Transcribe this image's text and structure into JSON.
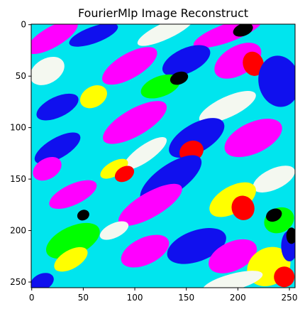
{
  "chart_data": {
    "type": "heatmap",
    "title": "FourierMlp Image Reconstruct",
    "xlabel": "",
    "ylabel": "",
    "xlim": [
      0,
      255
    ],
    "ylim": [
      255,
      0
    ],
    "x_ticks": [
      0,
      50,
      100,
      150,
      200,
      250
    ],
    "y_ticks": [
      0,
      50,
      100,
      150,
      200,
      250
    ],
    "grid": false,
    "image_size": [
      256,
      256
    ],
    "palette": {
      "magenta": "#ff00ff",
      "cyan": "#00e5ee",
      "blue": "#1010ee",
      "white": "#f4f8f0",
      "red": "#ff0000",
      "green": "#00ff00",
      "yellow": "#ffff00",
      "black": "#000000"
    },
    "background_color": "cyan",
    "regions": [
      {
        "color": "magenta",
        "cx": 20,
        "cy": 12,
        "rx": 28,
        "ry": 10,
        "angle": -30
      },
      {
        "color": "blue",
        "cx": 60,
        "cy": 10,
        "rx": 25,
        "ry": 8,
        "angle": -20
      },
      {
        "color": "white",
        "cx": 130,
        "cy": 6,
        "rx": 30,
        "ry": 8,
        "angle": -25
      },
      {
        "color": "magenta",
        "cx": 190,
        "cy": 8,
        "rx": 35,
        "ry": 9,
        "angle": -20
      },
      {
        "color": "black",
        "cx": 205,
        "cy": 5,
        "rx": 10,
        "ry": 6,
        "angle": -20
      },
      {
        "color": "white",
        "cx": 15,
        "cy": 45,
        "rx": 18,
        "ry": 12,
        "angle": -30
      },
      {
        "color": "magenta",
        "cx": 95,
        "cy": 40,
        "rx": 30,
        "ry": 12,
        "angle": -30
      },
      {
        "color": "blue",
        "cx": 150,
        "cy": 35,
        "rx": 25,
        "ry": 12,
        "angle": -25
      },
      {
        "color": "magenta",
        "cx": 200,
        "cy": 35,
        "rx": 25,
        "ry": 14,
        "angle": -30
      },
      {
        "color": "red",
        "cx": 215,
        "cy": 38,
        "rx": 10,
        "ry": 12,
        "angle": -20
      },
      {
        "color": "blue",
        "cx": 240,
        "cy": 55,
        "rx": 20,
        "ry": 25,
        "angle": -10
      },
      {
        "color": "green",
        "cx": 125,
        "cy": 60,
        "rx": 20,
        "ry": 10,
        "angle": -20
      },
      {
        "color": "black",
        "cx": 143,
        "cy": 52,
        "rx": 9,
        "ry": 6,
        "angle": -20
      },
      {
        "color": "yellow",
        "cx": 60,
        "cy": 70,
        "rx": 14,
        "ry": 10,
        "angle": -30
      },
      {
        "color": "blue",
        "cx": 25,
        "cy": 80,
        "rx": 22,
        "ry": 10,
        "angle": -25
      },
      {
        "color": "white",
        "cx": 190,
        "cy": 80,
        "rx": 30,
        "ry": 10,
        "angle": -25
      },
      {
        "color": "magenta",
        "cx": 100,
        "cy": 95,
        "rx": 35,
        "ry": 13,
        "angle": -30
      },
      {
        "color": "blue",
        "cx": 160,
        "cy": 110,
        "rx": 30,
        "ry": 14,
        "angle": -30
      },
      {
        "color": "magenta",
        "cx": 215,
        "cy": 110,
        "rx": 30,
        "ry": 15,
        "angle": -25
      },
      {
        "color": "blue",
        "cx": 25,
        "cy": 120,
        "rx": 25,
        "ry": 10,
        "angle": -30
      },
      {
        "color": "red",
        "cx": 155,
        "cy": 123,
        "rx": 12,
        "ry": 10,
        "angle": -25
      },
      {
        "color": "white",
        "cx": 110,
        "cy": 125,
        "rx": 25,
        "ry": 8,
        "angle": -35
      },
      {
        "color": "magenta",
        "cx": 15,
        "cy": 140,
        "rx": 15,
        "ry": 10,
        "angle": -30
      },
      {
        "color": "yellow",
        "cx": 80,
        "cy": 140,
        "rx": 15,
        "ry": 7,
        "angle": -30
      },
      {
        "color": "red",
        "cx": 90,
        "cy": 145,
        "rx": 10,
        "ry": 7,
        "angle": -30
      },
      {
        "color": "blue",
        "cx": 135,
        "cy": 150,
        "rx": 35,
        "ry": 14,
        "angle": -35
      },
      {
        "color": "white",
        "cx": 235,
        "cy": 150,
        "rx": 22,
        "ry": 10,
        "angle": -25
      },
      {
        "color": "magenta",
        "cx": 40,
        "cy": 165,
        "rx": 25,
        "ry": 10,
        "angle": -25
      },
      {
        "color": "magenta",
        "cx": 115,
        "cy": 175,
        "rx": 35,
        "ry": 12,
        "angle": -30
      },
      {
        "color": "yellow",
        "cx": 195,
        "cy": 170,
        "rx": 25,
        "ry": 13,
        "angle": -30
      },
      {
        "color": "red",
        "cx": 205,
        "cy": 178,
        "rx": 11,
        "ry": 12,
        "angle": -20
      },
      {
        "color": "green",
        "cx": 240,
        "cy": 190,
        "rx": 15,
        "ry": 12,
        "angle": -25
      },
      {
        "color": "black",
        "cx": 235,
        "cy": 185,
        "rx": 8,
        "ry": 6,
        "angle": -25
      },
      {
        "color": "black",
        "cx": 50,
        "cy": 185,
        "rx": 6,
        "ry": 5,
        "angle": -25
      },
      {
        "color": "green",
        "cx": 40,
        "cy": 210,
        "rx": 28,
        "ry": 14,
        "angle": -25
      },
      {
        "color": "yellow",
        "cx": 38,
        "cy": 228,
        "rx": 18,
        "ry": 9,
        "angle": -30
      },
      {
        "color": "magenta",
        "cx": 110,
        "cy": 220,
        "rx": 25,
        "ry": 13,
        "angle": -25
      },
      {
        "color": "white",
        "cx": 80,
        "cy": 200,
        "rx": 15,
        "ry": 7,
        "angle": -25
      },
      {
        "color": "blue",
        "cx": 160,
        "cy": 215,
        "rx": 30,
        "ry": 15,
        "angle": -20
      },
      {
        "color": "magenta",
        "cx": 195,
        "cy": 225,
        "rx": 25,
        "ry": 14,
        "angle": -25
      },
      {
        "color": "yellow",
        "cx": 230,
        "cy": 235,
        "rx": 22,
        "ry": 18,
        "angle": -30
      },
      {
        "color": "white",
        "cx": 195,
        "cy": 250,
        "rx": 30,
        "ry": 8,
        "angle": -15
      },
      {
        "color": "red",
        "cx": 245,
        "cy": 245,
        "rx": 10,
        "ry": 10,
        "angle": -20
      },
      {
        "color": "blue",
        "cx": 10,
        "cy": 250,
        "rx": 12,
        "ry": 8,
        "angle": -25
      },
      {
        "color": "blue",
        "cx": 250,
        "cy": 215,
        "rx": 8,
        "ry": 15,
        "angle": 0
      },
      {
        "color": "black",
        "cx": 252,
        "cy": 205,
        "rx": 5,
        "ry": 8,
        "angle": 0
      }
    ]
  }
}
